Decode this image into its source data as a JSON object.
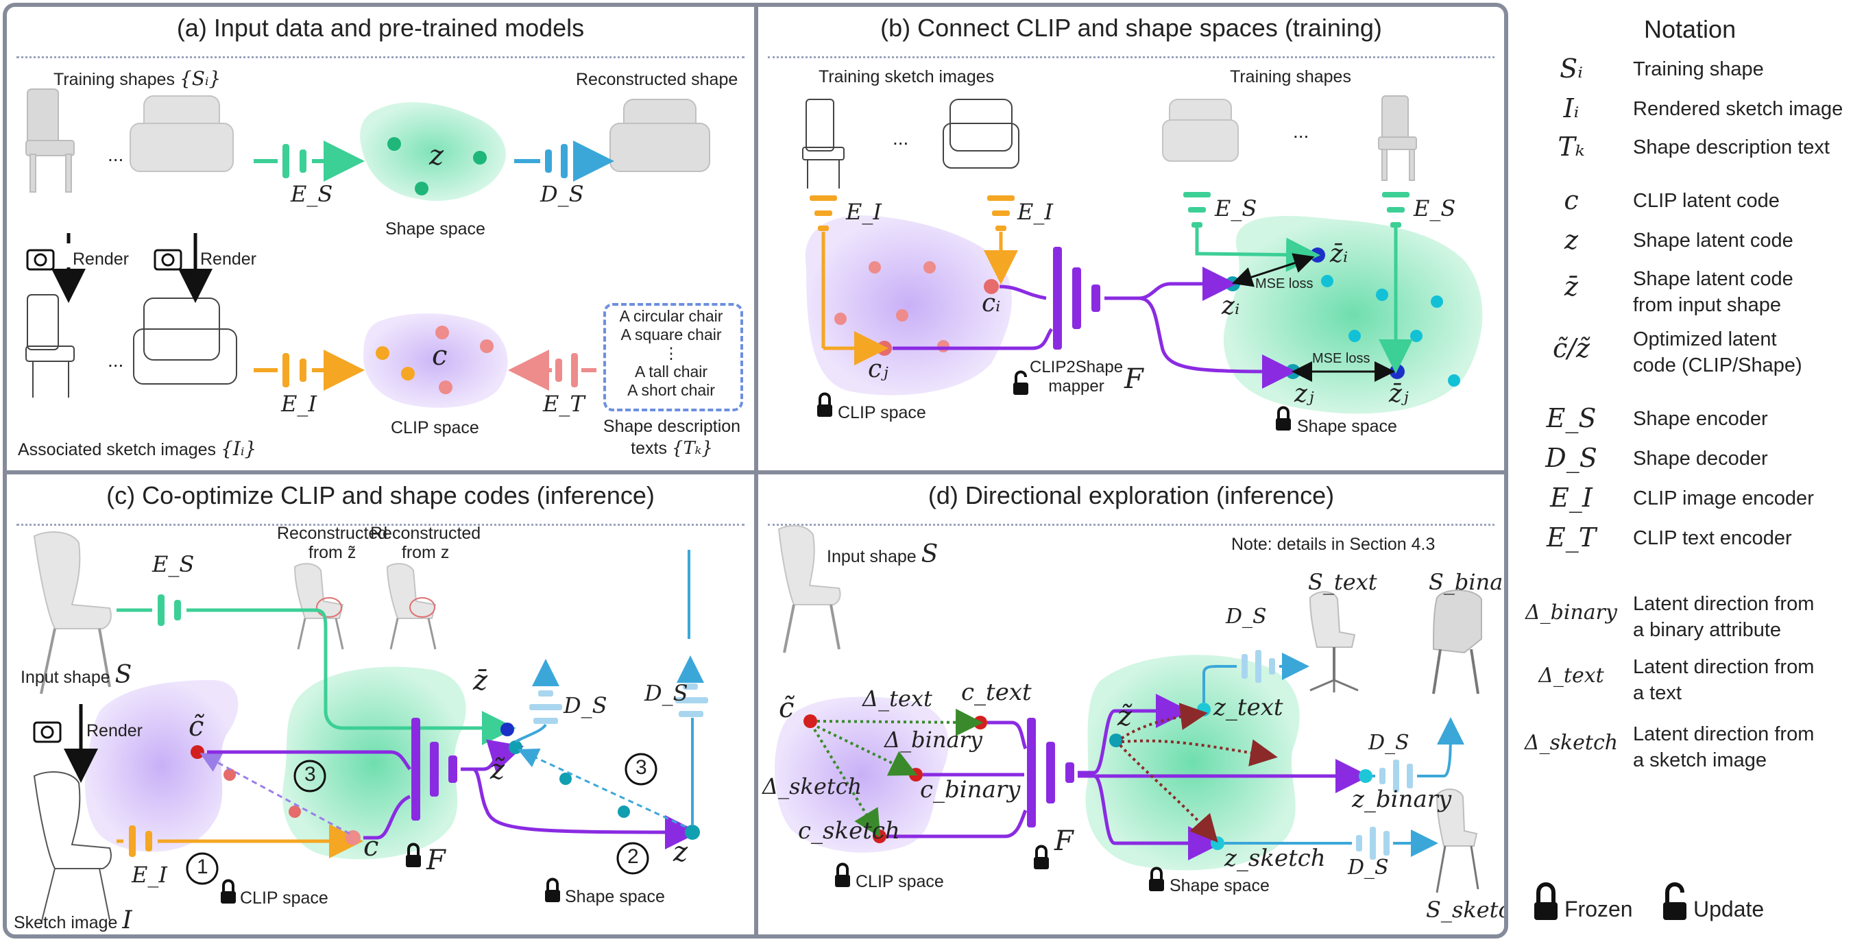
{
  "panels": {
    "a": {
      "title": "(a) Input data and pre-trained models",
      "training_shapes": "Training shapes",
      "training_shapes_sym": "{Sᵢ}",
      "reconstructed_shape": "Reconstructed shape",
      "ellipsis": "...",
      "render": "Render",
      "shape_space": "Shape space",
      "clip_space": "CLIP space",
      "associated_sketch": "Associated sketch images",
      "associated_sketch_sym": "{Iᵢ}",
      "shape_desc_line1": "Shape description",
      "shape_desc_line2": "texts",
      "shape_desc_sym": "{Tₖ}",
      "texts": [
        "A circular chair",
        "A square chair",
        "⋮",
        "A tall chair",
        "A short chair"
      ],
      "z": "z",
      "c": "c",
      "es": "E_S",
      "ds": "D_S",
      "ei": "E_I",
      "et": "E_T"
    },
    "b": {
      "title": "(b) Connect CLIP and shape spaces (training)",
      "training_sketch": "Training sketch images",
      "training_shapes": "Training shapes",
      "ellipsis": "...",
      "clip_space": "CLIP space",
      "shape_space": "Shape space",
      "mapper_line1": "CLIP2Shape",
      "mapper_line2": "mapper",
      "mse1": "MSE loss",
      "mse2": "MSE loss",
      "ei": "E_I",
      "es": "E_S",
      "f": "F",
      "ci": "cᵢ",
      "cj": "cⱼ",
      "zi": "zᵢ",
      "zj": "zⱼ",
      "zbi": "z̄ᵢ",
      "zbj": "z̄ⱼ"
    },
    "c": {
      "title": "(c) Co-optimize CLIP and shape codes (inference)",
      "recon_tilde_1": "Reconstructed",
      "recon_tilde_2": "from z̃",
      "recon_z_1": "Reconstructed",
      "recon_z_2": "from z",
      "input_shape": "Input shape",
      "input_shape_sym": "S",
      "render": "Render",
      "sketch_image": "Sketch image",
      "sketch_image_sym": "I",
      "clip_space": "CLIP space",
      "shape_space": "Shape space",
      "step1": "1",
      "step2": "2",
      "step3a": "3",
      "step3b": "3",
      "es": "E_S",
      "ds1": "D_S",
      "ds2": "D_S",
      "ei": "E_I",
      "f": "F",
      "c": "c",
      "ct": "c̃",
      "z": "z",
      "zt": "z̃",
      "zb": "z̄"
    },
    "d": {
      "title": "(d) Directional exploration (inference)",
      "note": "Note: details in Section 4.3",
      "input_shape": "Input shape",
      "input_shape_sym": "S",
      "s_text": "S_text",
      "s_binary": "S_binary",
      "s_sketch": "S_sketch",
      "clip_space": "CLIP space",
      "shape_space": "Shape space",
      "ds1": "D_S",
      "ds2": "D_S",
      "ds3": "D_S",
      "f": "F",
      "ct": "c̃",
      "zt": "z̃",
      "c_text": "c_text",
      "c_binary": "c_binary",
      "c_sketch": "c_sketch",
      "z_text": "z_text",
      "z_binary": "z_binary",
      "z_sketch": "z_sketch",
      "d_text": "Δ_text",
      "d_binary": "Δ_binary",
      "d_sketch": "Δ_sketch"
    }
  },
  "notation": {
    "title": "Notation",
    "groups": [
      [
        {
          "sym": "Sᵢ",
          "desc": [
            "Training shape"
          ]
        },
        {
          "sym": "Iᵢ",
          "desc": [
            "Rendered sketch image"
          ]
        },
        {
          "sym": "Tₖ",
          "desc": [
            "Shape description text"
          ]
        }
      ],
      [
        {
          "sym": "c",
          "desc": [
            "CLIP latent code"
          ]
        },
        {
          "sym": "z",
          "desc": [
            "Shape latent code"
          ]
        },
        {
          "sym": "z̄",
          "desc": [
            "Shape latent code",
            "from input shape"
          ]
        },
        {
          "sym": "c̃/z̃",
          "desc": [
            "Optimized latent",
            "code (CLIP/Shape)"
          ]
        }
      ],
      [
        {
          "sym": "E_S",
          "desc": [
            "Shape encoder"
          ]
        },
        {
          "sym": "D_S",
          "desc": [
            "Shape decoder"
          ]
        },
        {
          "sym": "E_I",
          "desc": [
            "CLIP image encoder"
          ]
        },
        {
          "sym": "E_T",
          "desc": [
            "CLIP text encoder"
          ]
        }
      ],
      [
        {
          "sym": "Δ_binary",
          "desc": [
            "Latent direction from",
            "a binary attribute"
          ]
        },
        {
          "sym": "Δ_text",
          "desc": [
            "Latent direction from",
            "a text"
          ]
        },
        {
          "sym": "Δ_sketch",
          "desc": [
            "Latent direction from",
            "a sketch image"
          ]
        }
      ]
    ],
    "frozen": "Frozen",
    "update": "Update"
  },
  "colors": {
    "frame": "#858b9a",
    "purple": "#8a2be2",
    "green": "#3ccf96",
    "blue": "#3ba7d9",
    "orange": "#f5a623",
    "pink": "#ee8b8b",
    "dark_red": "#b31818",
    "navy": "#1c30c8",
    "teal": "#17a2a8"
  }
}
